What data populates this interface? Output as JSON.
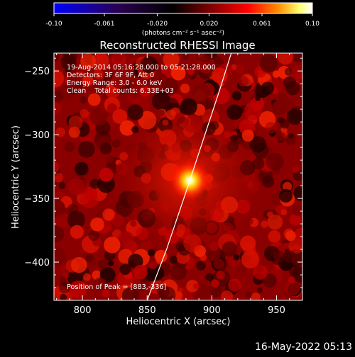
{
  "colorbar": {
    "ticks": [
      "-0.10",
      "-0.061",
      "-0.020",
      "0.020",
      "0.061",
      "0.10"
    ],
    "tick_values": [
      -0.1,
      -0.061,
      -0.02,
      0.02,
      0.061,
      0.1
    ],
    "units_label": "(photons cm⁻² s⁻¹ asec⁻²)",
    "min": -0.1,
    "max": 0.1,
    "colormap": [
      "#0000ff",
      "#2a0050",
      "#000000",
      "#7a0000",
      "#ff0000",
      "#ff9000",
      "#ffff70",
      "#ffffff"
    ]
  },
  "chart_data": {
    "type": "heatmap",
    "title": "Reconstructed RHESSI Image",
    "xlabel": "Heliocentric X (arcsec)",
    "ylabel": "Heliocentric Y (arcsec)",
    "xlim": [
      778,
      970
    ],
    "ylim": [
      -430,
      -236
    ],
    "x_ticks": [
      800,
      850,
      900,
      950
    ],
    "y_ticks": [
      -250,
      -300,
      -350,
      -400
    ],
    "peak": [
      883,
      -336
    ],
    "annotations": [
      "19-Aug-2014 05:16:28.000 to 05:21:28.000",
      "Detectors: 3F 6F 9F, Att 0",
      "Energy Range: 3.0 - 6.0 keV",
      "Clean    Total counts: 6.33E+03"
    ],
    "peak_label": "Position of Peak = [883,-336]",
    "limb_curve": [
      [
        850,
        -430
      ],
      [
        865,
        -390
      ],
      [
        880,
        -345
      ],
      [
        893,
        -305
      ],
      [
        906,
        -265
      ],
      [
        915,
        -236
      ]
    ]
  },
  "footer": {
    "timestamp": "16-May-2022 05:13"
  }
}
